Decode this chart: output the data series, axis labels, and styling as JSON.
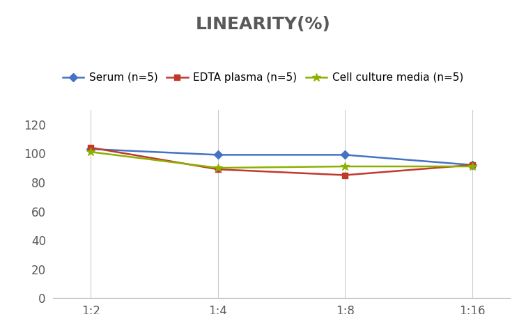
{
  "title": "LINEARITY(%)",
  "x_labels": [
    "1:2",
    "1:4",
    "1:8",
    "1:16"
  ],
  "series": [
    {
      "label": "Serum (n=5)",
      "values": [
        103,
        99,
        99,
        92
      ],
      "color": "#4472C4",
      "marker": "D",
      "markersize": 6
    },
    {
      "label": "EDTA plasma (n=5)",
      "values": [
        104,
        89,
        85,
        92
      ],
      "color": "#C0392B",
      "marker": "s",
      "markersize": 6
    },
    {
      "label": "Cell culture media (n=5)",
      "values": [
        101,
        90,
        91,
        91
      ],
      "color": "#8DB000",
      "marker": "*",
      "markersize": 9
    }
  ],
  "ylim": [
    0,
    130
  ],
  "yticks": [
    0,
    20,
    40,
    60,
    80,
    100,
    120
  ],
  "background_color": "#FFFFFF",
  "title_fontsize": 18,
  "title_color": "#595959",
  "legend_fontsize": 11,
  "tick_fontsize": 12,
  "tick_color": "#595959"
}
